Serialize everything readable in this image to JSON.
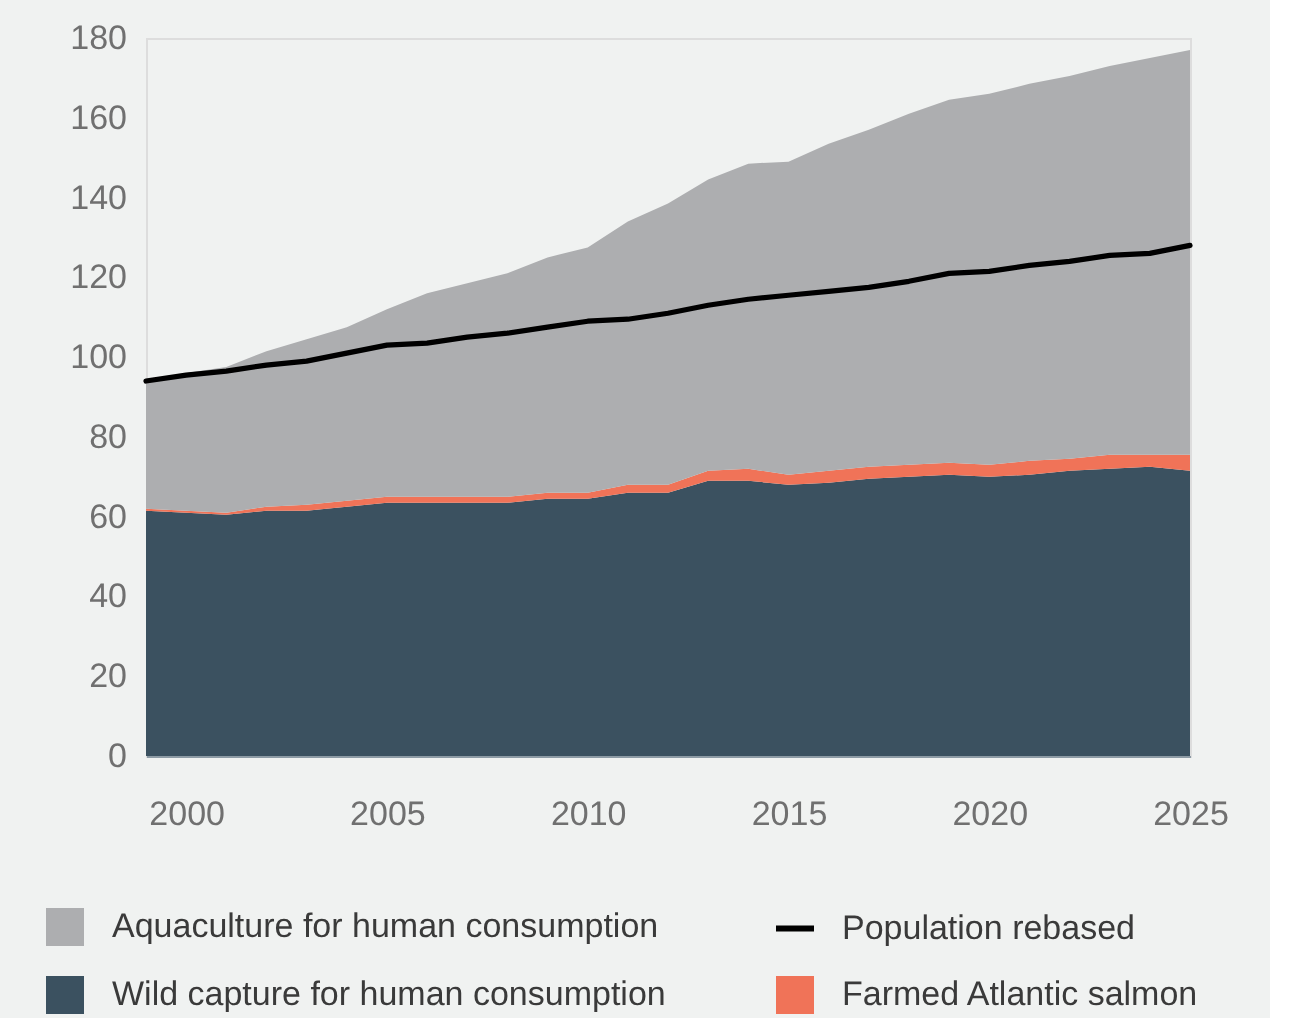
{
  "chart_data": {
    "type": "area",
    "stacked": true,
    "x": [
      1999,
      2000,
      2001,
      2002,
      2003,
      2004,
      2005,
      2006,
      2007,
      2008,
      2009,
      2010,
      2011,
      2012,
      2013,
      2014,
      2015,
      2016,
      2017,
      2018,
      2019,
      2020,
      2021,
      2022,
      2023,
      2024,
      2025
    ],
    "xlim": [
      1999,
      2025
    ],
    "xticks": [
      2000,
      2005,
      2010,
      2015,
      2020,
      2025
    ],
    "ylim": [
      0,
      180
    ],
    "yticks": [
      0,
      20,
      40,
      60,
      80,
      100,
      120,
      140,
      160,
      180
    ],
    "legend": "bottom",
    "series": [
      {
        "name": "Wild capture for human consumption",
        "color": "#3b5160",
        "values": [
          61.5,
          61,
          60.5,
          61.5,
          61.5,
          62.5,
          63.5,
          63.5,
          63.5,
          63.5,
          64.5,
          64.5,
          66,
          66,
          69,
          69,
          68,
          68.5,
          69.5,
          70,
          70.5,
          70,
          70.5,
          71.5,
          72,
          72.5,
          71.5
        ]
      },
      {
        "name": "Farmed Atlantic salmon",
        "color": "#f07358",
        "values": [
          0.5,
          0.5,
          0.5,
          1,
          1.5,
          1.5,
          1.5,
          1.5,
          1.5,
          1.5,
          1.5,
          1.5,
          2,
          2,
          2.5,
          3,
          2.5,
          3,
          3,
          3,
          3,
          3,
          3.5,
          3,
          3.5,
          3,
          4
        ]
      },
      {
        "name": "Aquaculture for human consumption",
        "color": "#adaeb0",
        "values": [
          32,
          34.5,
          36.5,
          39,
          41.5,
          43.5,
          47,
          51,
          53.5,
          56,
          59,
          61.5,
          66,
          70.5,
          73,
          76.5,
          78.5,
          82,
          84.5,
          88,
          91,
          93,
          94.5,
          96,
          97.5,
          99.5,
          101.5
        ]
      },
      {
        "name": "Population rebased",
        "type": "line",
        "color": "#000000",
        "values": [
          94,
          95.5,
          96.5,
          98,
          99,
          101,
          103,
          103.5,
          105,
          106,
          107.5,
          109,
          109.5,
          111,
          113,
          114.5,
          115.5,
          116.5,
          117.5,
          119,
          121,
          121.5,
          123,
          124,
          125.5,
          126,
          128
        ]
      }
    ]
  }
}
